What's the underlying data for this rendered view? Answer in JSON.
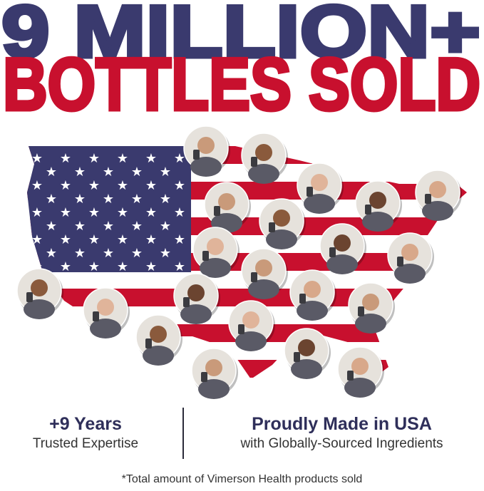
{
  "headline": {
    "line1": "9 MILLION+",
    "line2": "BOTTLES SOLD"
  },
  "colors": {
    "navy": "#3a3a6e",
    "red": "#c8102e",
    "photo_ring": "#d9d9d9"
  },
  "map": {
    "subject": "US flag map with customer photos holding Vimerson Health bottles"
  },
  "stats": [
    {
      "title": "+9 Years",
      "subtitle": "Trusted Expertise"
    },
    {
      "title": "Proudly Made in USA",
      "subtitle": "with Globally-Sourced Ingredients"
    }
  ],
  "footnote": "*Total amount of Vimerson Health products sold"
}
